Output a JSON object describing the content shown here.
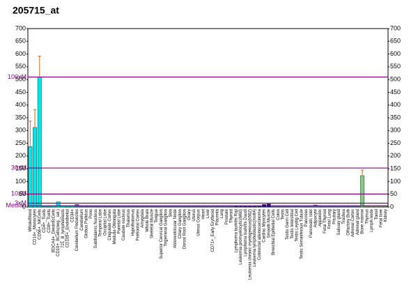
{
  "chart_data": {
    "type": "bar",
    "title": "205715_at",
    "categories": [
      "WholeBlood",
      "CD14+_Monocytes",
      "CD56+_NKCells",
      "CD4+_Tcells",
      "CD8+_Tcells",
      "BDCA4+_DentriticCells",
      "CD19+_BCells(neg._sel.)",
      "721_B_lymphoblasts",
      "CD105+_Endothelial",
      "CD34+",
      "Cerebellum Peduncles",
      "Cerebellum",
      "Globus Pallidus",
      "Pons",
      "Subthalamic Nucleus",
      "Temporal Lobe",
      "Occipital Lobe",
      "Cingulate Cortex",
      "Medulla Oblongata",
      "Parietal Lobe",
      "Caudate nucleus",
      "Thalamus",
      "Hypothalamus",
      "Prefrontal Cortex",
      "Amygdala",
      "Whole Brain",
      "Skeletal Muscle",
      "Tongue",
      "Superior Cervical Ganglion",
      "Trigeminal Ganglion",
      "Skin",
      "Atrioventricular Node",
      "Ciliary Ganglion",
      "Dorsal Root Ganglion",
      "Ovary",
      "Uterus",
      "Uterus Corpus",
      "Heart",
      "Liver",
      "CD71+_Early Erythroid",
      "Placenta",
      "Lung",
      "Prostate",
      "Thyroid",
      "Lymphoma burkitts Raji",
      "Leukemia promyelocytic(hl60)",
      "Lymphoma burkitts Daudi",
      "Leukemia chronic myelogenous(k562)",
      "Leukemia lymphoblastic(molt4)",
      "Colorectal adenocarcinoma",
      "Cardiac Myocytes",
      "Smooth Muscle",
      "Bronchial Epithelial Cells",
      "Colon",
      "Testis",
      "Testis Germ Cell",
      "Testis Interstitial",
      "Testis Leydig Cell",
      "Testis Seminiferous Tubule",
      "Pancreas",
      "Pancreatic Islet",
      "Adipocyte",
      "Appendix",
      "Fetal Thyroid",
      "Fetal Lung",
      "Pituitary",
      "Salivary gland",
      "Trachea",
      "Olfactory Bulb",
      "Adrenal Cortex",
      "Adrenal gland",
      "Bone marrow",
      "Thymus",
      "Lymph node",
      "Tonsil",
      "Fetal liver",
      "Kidney"
    ],
    "values": [
      237,
      312,
      510,
      3,
      3,
      4,
      20,
      4,
      3,
      3,
      10,
      3,
      3,
      3,
      3,
      3,
      3,
      3,
      3,
      3,
      3,
      3,
      4,
      3,
      3,
      3,
      3,
      3,
      3,
      3,
      3,
      3,
      4,
      3,
      3,
      3,
      3,
      3,
      3,
      3,
      3,
      3,
      4,
      3,
      3,
      3,
      3,
      3,
      3,
      3,
      10,
      12,
      3,
      3,
      3,
      3,
      3,
      3,
      3,
      3,
      3,
      8,
      3,
      3,
      3,
      3,
      3,
      3,
      3,
      3,
      3,
      123,
      3,
      3,
      3,
      3,
      3
    ],
    "errors": [
      100,
      70,
      82,
      null,
      null,
      null,
      null,
      null,
      null,
      null,
      null,
      null,
      null,
      null,
      null,
      null,
      null,
      null,
      null,
      null,
      null,
      null,
      null,
      null,
      null,
      null,
      null,
      null,
      null,
      null,
      null,
      null,
      null,
      null,
      null,
      null,
      null,
      null,
      null,
      null,
      null,
      null,
      null,
      null,
      null,
      null,
      null,
      null,
      null,
      null,
      null,
      null,
      null,
      null,
      null,
      null,
      null,
      null,
      null,
      null,
      null,
      null,
      null,
      null,
      null,
      null,
      null,
      null,
      null,
      null,
      null,
      22,
      null,
      null,
      null,
      null,
      null
    ],
    "colors": [
      "#00e5ee",
      "#00e5ee",
      "#00e5ee",
      "#00e5ee",
      "#00e5ee",
      "#00e5ee",
      "#00e5ee",
      "#00e5ee",
      "#00e5ee",
      "#00e5ee",
      "#4a6fd0",
      "#4a6fd0",
      "#4a6fd0",
      "#4a6fd0",
      "#4a6fd0",
      "#4a6fd0",
      "#4a6fd0",
      "#4a6fd0",
      "#4a6fd0",
      "#4a6fd0",
      "#4a6fd0",
      "#4a6fd0",
      "#4a6fd0",
      "#4a6fd0",
      "#4a6fd0",
      "#4a6fd0",
      "#4a6fd0",
      "#4a6fd0",
      "#4a6fd0",
      "#4a6fd0",
      "#4a6fd0",
      "#4a6fd0",
      "#4a6fd0",
      "#4a6fd0",
      "#4a6fd0",
      "#4a6fd0",
      "#4a6fd0",
      "#4a6fd0",
      "#4a6fd0",
      "#4a6fd0",
      "#4a6fd0",
      "#4a6fd0",
      "#4a6fd0",
      "#4a6fd0",
      "#000080",
      "#000080",
      "#000080",
      "#000080",
      "#000080",
      "#000080",
      "#000080",
      "#000080",
      "#4a6fd0",
      "#4a6fd0",
      "#4a6fd0",
      "#4a6fd0",
      "#4a6fd0",
      "#4a6fd0",
      "#4a6fd0",
      "#4a6fd0",
      "#4a6fd0",
      "#4a6fd0",
      "#4a6fd0",
      "#4a6fd0",
      "#4a6fd0",
      "#4a6fd0",
      "#4a6fd0",
      "#4a6fd0",
      "#4a6fd0",
      "#4a6fd0",
      "#4a6fd0",
      "#80d080",
      "#80d080",
      "#80d080",
      "#80d080",
      "#80d080",
      "#80d080"
    ],
    "error_color": "#d2691e",
    "ref_lines": [
      {
        "label": "100xM",
        "value": 510
      },
      {
        "label": "30xM",
        "value": 153
      },
      {
        "label": "10xM",
        "value": 51
      },
      {
        "label": "3xM",
        "value": 15
      },
      {
        "label": "Median",
        "value": 5
      }
    ],
    "ref_color": "#800080",
    "ylim": [
      0,
      700
    ],
    "yticks": [
      0,
      50,
      100,
      150,
      200,
      250,
      300,
      350,
      400,
      450,
      500,
      550,
      600,
      650,
      700
    ]
  }
}
